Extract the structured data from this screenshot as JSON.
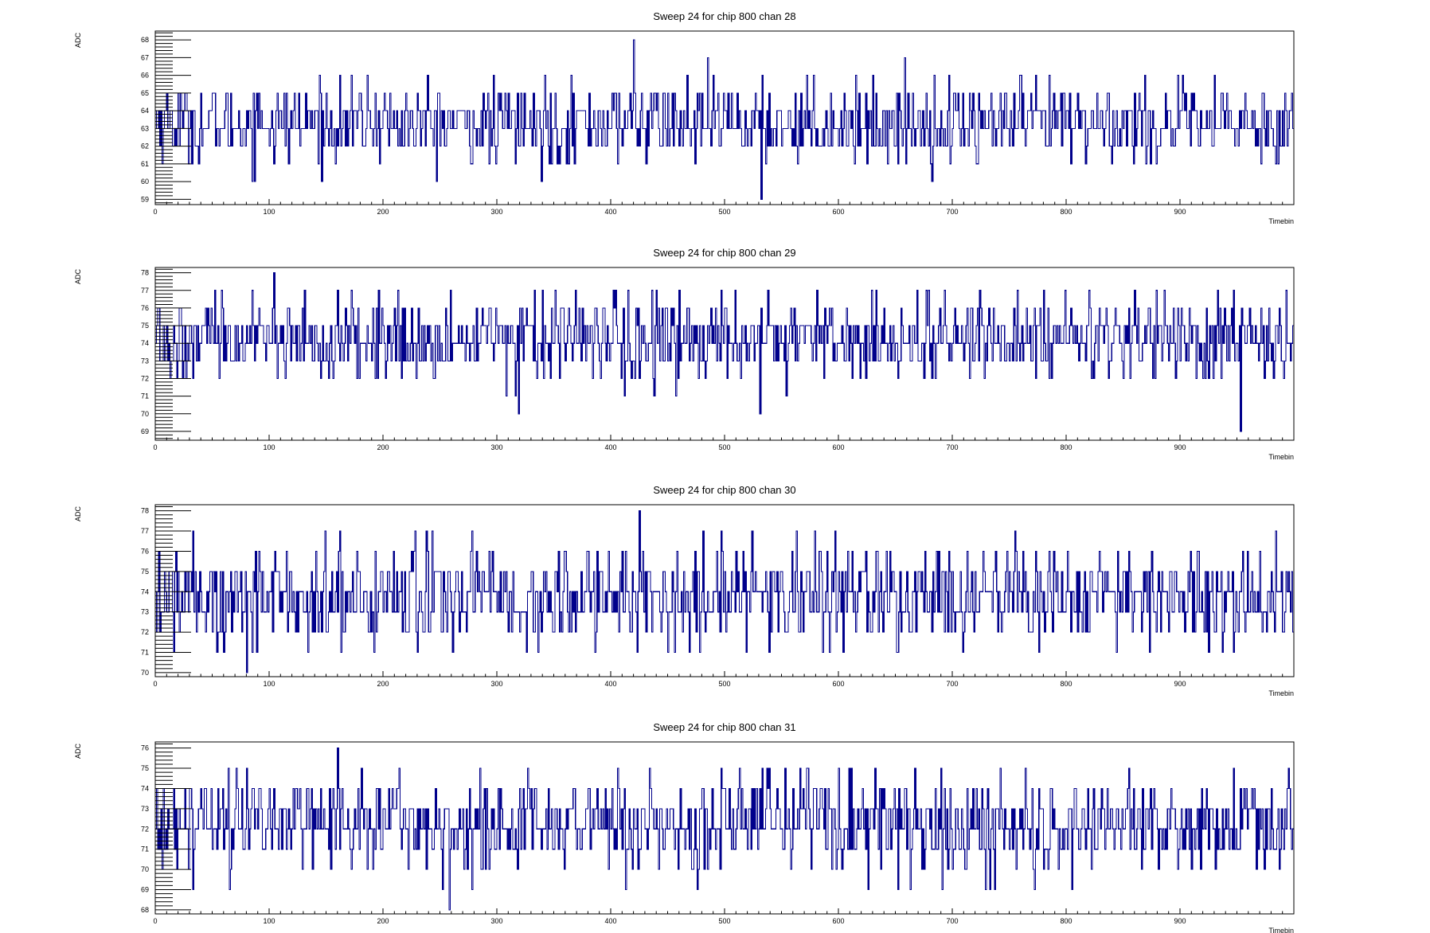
{
  "colors": {
    "trace": "#00008b",
    "frame": "#000000",
    "background": "#ffffff"
  },
  "chart_data": [
    {
      "type": "line",
      "title": "Sweep 24 for chip 800 chan 28",
      "xlabel": "Timebin",
      "ylabel": "ADC",
      "xlim": [
        0,
        1000
      ],
      "ylim": [
        58.7,
        68.5
      ],
      "xticks": [
        0,
        100,
        200,
        300,
        400,
        500,
        600,
        700,
        800,
        900
      ],
      "yticks": [
        59,
        60,
        61,
        62,
        63,
        64,
        65,
        66,
        67,
        68
      ],
      "series_summary": {
        "baseline": 63.3,
        "spread": 1.3,
        "min": 59,
        "max": 68,
        "min_at": 532,
        "max_at": 420
      },
      "grid": false,
      "legend": false
    },
    {
      "type": "line",
      "title": "Sweep 24 for chip 800 chan 29",
      "xlabel": "Timebin",
      "ylabel": "ADC",
      "xlim": [
        0,
        1000
      ],
      "ylim": [
        68.5,
        78.3
      ],
      "xticks": [
        0,
        100,
        200,
        300,
        400,
        500,
        600,
        700,
        800,
        900
      ],
      "yticks": [
        69,
        70,
        71,
        72,
        73,
        74,
        75,
        76,
        77,
        78
      ],
      "series_summary": {
        "baseline": 74.2,
        "spread": 1.4,
        "min": 69,
        "max": 78,
        "min_at": 953,
        "max_at": 104
      },
      "grid": false,
      "legend": false
    },
    {
      "type": "line",
      "title": "Sweep 24 for chip 800 chan 30",
      "xlabel": "Timebin",
      "ylabel": "ADC",
      "xlim": [
        0,
        1000
      ],
      "ylim": [
        69.8,
        78.3
      ],
      "xticks": [
        0,
        100,
        200,
        300,
        400,
        500,
        600,
        700,
        800,
        900
      ],
      "yticks": [
        70,
        71,
        72,
        73,
        74,
        75,
        76,
        77,
        78
      ],
      "series_summary": {
        "baseline": 73.8,
        "spread": 1.4,
        "min": 70,
        "max": 78,
        "min_at": 80,
        "max_at": 425
      },
      "grid": false,
      "legend": false
    },
    {
      "type": "line",
      "title": "Sweep 24 for chip 800 chan 31",
      "xlabel": "Timebin",
      "ylabel": "ADC",
      "xlim": [
        0,
        1000
      ],
      "ylim": [
        67.8,
        76.3
      ],
      "xticks": [
        0,
        100,
        200,
        300,
        400,
        500,
        600,
        700,
        800,
        900
      ],
      "yticks": [
        68,
        69,
        70,
        71,
        72,
        73,
        74,
        75,
        76
      ],
      "series_summary": {
        "baseline": 72.3,
        "spread": 1.4,
        "min": 68,
        "max": 76,
        "min_at": 258,
        "max_at": 160
      },
      "grid": false,
      "legend": false
    }
  ]
}
